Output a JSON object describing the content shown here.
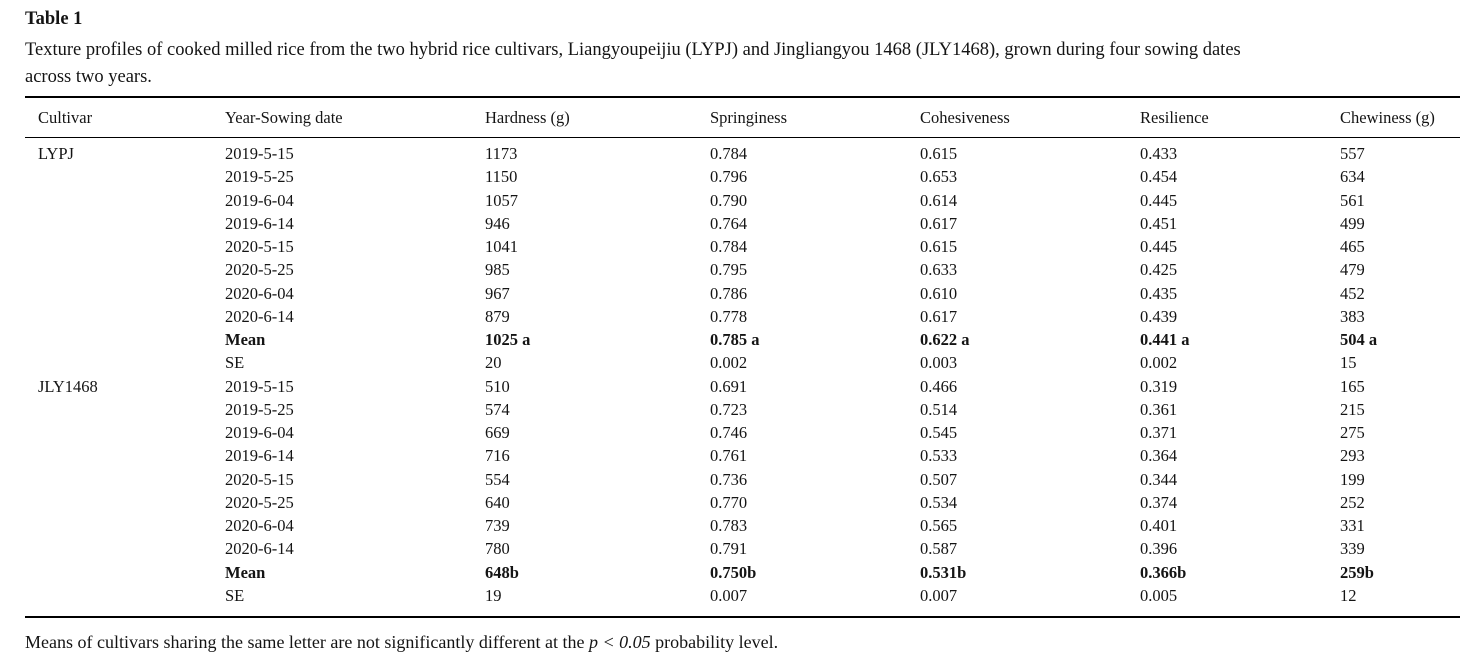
{
  "page": {
    "label": "Table 1",
    "caption_lines": [
      "Texture profiles of cooked milled rice from the two hybrid rice cultivars, Liangyoupeijiu (LYPJ) and Jingliangyou 1468 (JLY1468), grown during four sowing dates",
      "across two years."
    ]
  },
  "table": {
    "columns": [
      "Cultivar",
      "Year-Sowing date",
      "Hardness (g)",
      "Springiness",
      "Cohesiveness",
      "Resilience",
      "Chewiness (g)"
    ],
    "groups": [
      {
        "cultivar": "LYPJ",
        "rows": [
          {
            "label": "2019-5-15",
            "values": [
              "1173",
              "0.784",
              "0.615",
              "0.433",
              "557"
            ],
            "bold": false
          },
          {
            "label": "2019-5-25",
            "values": [
              "1150",
              "0.796",
              "0.653",
              "0.454",
              "634"
            ],
            "bold": false
          },
          {
            "label": "2019-6-04",
            "values": [
              "1057",
              "0.790",
              "0.614",
              "0.445",
              "561"
            ],
            "bold": false
          },
          {
            "label": "2019-6-14",
            "values": [
              "946",
              "0.764",
              "0.617",
              "0.451",
              "499"
            ],
            "bold": false
          },
          {
            "label": "2020-5-15",
            "values": [
              "1041",
              "0.784",
              "0.615",
              "0.445",
              "465"
            ],
            "bold": false
          },
          {
            "label": "2020-5-25",
            "values": [
              "985",
              "0.795",
              "0.633",
              "0.425",
              "479"
            ],
            "bold": false
          },
          {
            "label": "2020-6-04",
            "values": [
              "967",
              "0.786",
              "0.610",
              "0.435",
              "452"
            ],
            "bold": false
          },
          {
            "label": "2020-6-14",
            "values": [
              "879",
              "0.778",
              "0.617",
              "0.439",
              "383"
            ],
            "bold": false
          },
          {
            "label": "Mean",
            "values": [
              "1025 a",
              "0.785 a",
              "0.622 a",
              "0.441 a",
              "504 a"
            ],
            "bold": true
          },
          {
            "label": "SE",
            "values": [
              "20",
              "0.002",
              "0.003",
              "0.002",
              "15"
            ],
            "bold": false
          }
        ]
      },
      {
        "cultivar": "JLY1468",
        "rows": [
          {
            "label": "2019-5-15",
            "values": [
              "510",
              "0.691",
              "0.466",
              "0.319",
              "165"
            ],
            "bold": false
          },
          {
            "label": "2019-5-25",
            "values": [
              "574",
              "0.723",
              "0.514",
              "0.361",
              "215"
            ],
            "bold": false
          },
          {
            "label": "2019-6-04",
            "values": [
              "669",
              "0.746",
              "0.545",
              "0.371",
              "275"
            ],
            "bold": false
          },
          {
            "label": "2019-6-14",
            "values": [
              "716",
              "0.761",
              "0.533",
              "0.364",
              "293"
            ],
            "bold": false
          },
          {
            "label": "2020-5-15",
            "values": [
              "554",
              "0.736",
              "0.507",
              "0.344",
              "199"
            ],
            "bold": false
          },
          {
            "label": "2020-5-25",
            "values": [
              "640",
              "0.770",
              "0.534",
              "0.374",
              "252"
            ],
            "bold": false
          },
          {
            "label": "2020-6-04",
            "values": [
              "739",
              "0.783",
              "0.565",
              "0.401",
              "331"
            ],
            "bold": false
          },
          {
            "label": "2020-6-14",
            "values": [
              "780",
              "0.791",
              "0.587",
              "0.396",
              "339"
            ],
            "bold": false
          },
          {
            "label": "Mean",
            "values": [
              "648b",
              "0.750b",
              "0.531b",
              "0.366b",
              "259b"
            ],
            "bold": true
          },
          {
            "label": "SE",
            "values": [
              "19",
              "0.007",
              "0.007",
              "0.005",
              "12"
            ],
            "bold": false
          }
        ]
      }
    ]
  },
  "footnote": {
    "prefix": "Means of cultivars sharing the same letter are not significantly different at the ",
    "italic": "p < 0.05",
    "suffix": " probability level."
  }
}
